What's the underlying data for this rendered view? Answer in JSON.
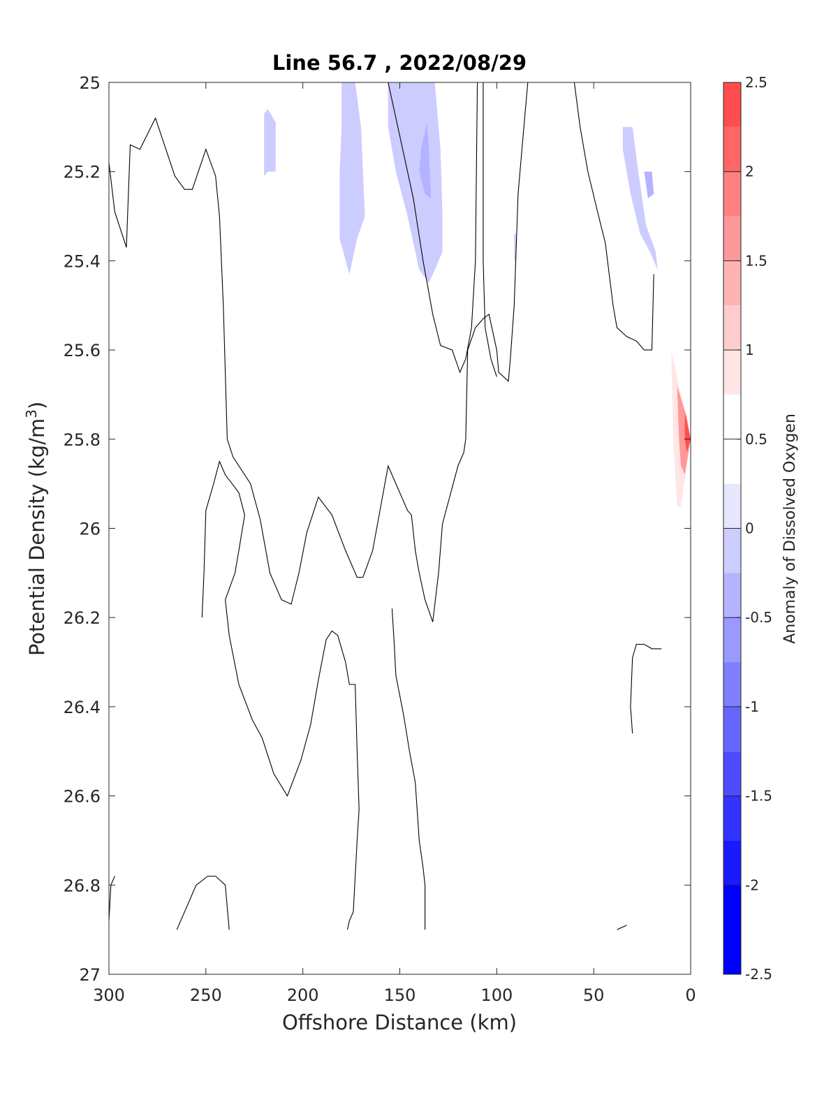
{
  "chart_data": {
    "type": "heatmap",
    "subtype": "filled-contour",
    "title": "Line 56.7 , 2022/08/29",
    "xlabel": "Offshore Distance (km)",
    "ylabel_main": "Potential Density (kg/m",
    "ylabel_sup": "3",
    "ylabel_close": ")",
    "xlim": [
      300,
      0
    ],
    "x_reversed": true,
    "ylim": [
      25,
      27
    ],
    "y_reversed": true,
    "x_ticks": [
      300,
      250,
      200,
      150,
      100,
      50,
      0
    ],
    "y_ticks": [
      "25",
      "25.2",
      "25.4",
      "25.6",
      "25.8",
      "26",
      "26.2",
      "26.4",
      "26.6",
      "26.8",
      "27"
    ],
    "colorbar": {
      "label": "Anomaly of Dissolved Oxygen",
      "range": [
        -2.5,
        2.5
      ],
      "step": 0.25,
      "ticks": [
        "-2.5",
        "-2",
        "-1.5",
        "-1",
        "-0.5",
        "0",
        "0.5",
        "1",
        "1.5",
        "2",
        "2.5"
      ],
      "colors_low_to_high": [
        "#0000ff",
        "#1a1aff",
        "#3333ff",
        "#4d4dff",
        "#6666ff",
        "#8080ff",
        "#9999ff",
        "#b3b3ff",
        "#ccccff",
        "#e6e6ff",
        "#ffffff",
        "#ffffff",
        "#ffe6e6",
        "#ffcccc",
        "#ffb3b3",
        "#ff9999",
        "#ff8080",
        "#ff6666",
        "#ff4d4d",
        "#ff3333",
        "#ff1a1a",
        "#ff0000"
      ]
    },
    "anomaly_regions": [
      {
        "level": 0.25,
        "points": [
          [
            300,
            25.55
          ],
          [
            298,
            25.65
          ],
          [
            298,
            25.72
          ],
          [
            300,
            25.76
          ]
        ]
      },
      {
        "level": 0.25,
        "points": [
          [
            300,
            25.9
          ],
          [
            292,
            25.98
          ],
          [
            286,
            26.2
          ],
          [
            284,
            26.4
          ],
          [
            283,
            26.6
          ],
          [
            290,
            26.63
          ],
          [
            300,
            26.66
          ]
        ]
      },
      {
        "level": 0.5,
        "points": [
          [
            300,
            26.04
          ],
          [
            294,
            26.15
          ],
          [
            292,
            26.3
          ],
          [
            291,
            26.4
          ],
          [
            295,
            26.44
          ],
          [
            300,
            26.47
          ]
        ]
      },
      {
        "level": 0.25,
        "points": [
          [
            275,
            25.3
          ],
          [
            270,
            25.29
          ],
          [
            260,
            25.4
          ],
          [
            255,
            25.46
          ],
          [
            250,
            25.45
          ],
          [
            247,
            25.6
          ],
          [
            246,
            25.8
          ],
          [
            248,
            26.0
          ],
          [
            250,
            26.2
          ],
          [
            252,
            26.32
          ],
          [
            257,
            26.37
          ],
          [
            265,
            26.38
          ],
          [
            270,
            26.36
          ],
          [
            275,
            26.1
          ],
          [
            278,
            26.0
          ],
          [
            281,
            25.9
          ],
          [
            282,
            25.8
          ],
          [
            280,
            25.6
          ],
          [
            278,
            25.4
          ]
        ]
      },
      {
        "level": 0.5,
        "points": [
          [
            271,
            25.49
          ],
          [
            266,
            25.52
          ],
          [
            262,
            25.6
          ],
          [
            256,
            25.7
          ],
          [
            255,
            25.8
          ],
          [
            255,
            25.9
          ],
          [
            260,
            26.1
          ],
          [
            263,
            26.3
          ],
          [
            267,
            26.3
          ],
          [
            270,
            26.1
          ],
          [
            272,
            25.9
          ],
          [
            272,
            25.7
          ]
        ]
      },
      {
        "level": 0.25,
        "points": [
          [
            75,
            25.37
          ],
          [
            78,
            25.38
          ],
          [
            81,
            25.5
          ],
          [
            81,
            25.8
          ],
          [
            83,
            25.92
          ],
          [
            88,
            25.9
          ],
          [
            91,
            25.87
          ],
          [
            96,
            25.93
          ],
          [
            101,
            25.94
          ],
          [
            102,
            26.2
          ],
          [
            102,
            26.5
          ],
          [
            102,
            26.6
          ],
          [
            98,
            26.68
          ],
          [
            92,
            26.77
          ],
          [
            87,
            26.82
          ],
          [
            82,
            26.82
          ],
          [
            78,
            26.78
          ],
          [
            77,
            26.7
          ],
          [
            74,
            26.6
          ],
          [
            69,
            26.54
          ],
          [
            60,
            26.53
          ],
          [
            54,
            26.49
          ],
          [
            49,
            26.4
          ],
          [
            52,
            26.2
          ],
          [
            54,
            26.1
          ],
          [
            60,
            26.0
          ],
          [
            66,
            25.96
          ],
          [
            70,
            25.8
          ],
          [
            72,
            25.6
          ]
        ]
      },
      {
        "level": 0.25,
        "points": [
          [
            11,
            25.47
          ],
          [
            8,
            25.5
          ],
          [
            6,
            25.6
          ],
          [
            1,
            25.75
          ],
          [
            0,
            25.8
          ],
          [
            3,
            25.98
          ],
          [
            5,
            26.1
          ],
          [
            7,
            26.15
          ],
          [
            10,
            26.21
          ],
          [
            14,
            26.21
          ],
          [
            18,
            26.06
          ],
          [
            20,
            25.9
          ],
          [
            23,
            25.8
          ],
          [
            19,
            25.76
          ],
          [
            15,
            25.78
          ],
          [
            12,
            25.7
          ]
        ]
      },
      {
        "level": 0.75,
        "points": [
          [
            10,
            25.6
          ],
          [
            5,
            25.7
          ],
          [
            0,
            25.8
          ],
          [
            5,
            25.95
          ],
          [
            7,
            25.95
          ],
          [
            9,
            25.8
          ]
        ]
      },
      {
        "level": 1.5,
        "points": [
          [
            7,
            25.68
          ],
          [
            2,
            25.75
          ],
          [
            0,
            25.8
          ],
          [
            3,
            25.88
          ],
          [
            5,
            25.86
          ],
          [
            6,
            25.8
          ]
        ]
      },
      {
        "level": 2.25,
        "points": [
          [
            3,
            25.74
          ],
          [
            0,
            25.8
          ],
          [
            2,
            25.83
          ],
          [
            3,
            25.8
          ]
        ]
      },
      {
        "level": -0.25,
        "points": [
          [
            220,
            25.07
          ],
          [
            218,
            25.06
          ],
          [
            214,
            25.09
          ],
          [
            214,
            25.2
          ],
          [
            218,
            25.2
          ],
          [
            220,
            25.21
          ]
        ]
      },
      {
        "level": -0.25,
        "points": [
          [
            180,
            25.0
          ],
          [
            173,
            25.0
          ],
          [
            170,
            25.1
          ],
          [
            168,
            25.3
          ],
          [
            172,
            25.35
          ],
          [
            176,
            25.43
          ],
          [
            181,
            25.35
          ],
          [
            181,
            25.2
          ],
          [
            180,
            25.1
          ]
        ]
      },
      {
        "level": -0.25,
        "points": [
          [
            156,
            25.0
          ],
          [
            132,
            25.0
          ],
          [
            129,
            25.15
          ],
          [
            128,
            25.3
          ],
          [
            128,
            25.38
          ],
          [
            135,
            25.45
          ],
          [
            140,
            25.42
          ],
          [
            146,
            25.3
          ],
          [
            152,
            25.2
          ],
          [
            156,
            25.1
          ]
        ]
      },
      {
        "level": -0.5,
        "points": [
          [
            136,
            25.09
          ],
          [
            139,
            25.15
          ],
          [
            140,
            25.2
          ],
          [
            137,
            25.25
          ],
          [
            134,
            25.26
          ],
          [
            135,
            25.15
          ]
        ]
      },
      {
        "level": -0.25,
        "points": [
          [
            35,
            25.1
          ],
          [
            30,
            25.1
          ],
          [
            27,
            25.2
          ],
          [
            23,
            25.32
          ],
          [
            18,
            25.38
          ],
          [
            17,
            25.42
          ],
          [
            21,
            25.38
          ],
          [
            26,
            25.34
          ],
          [
            31,
            25.25
          ],
          [
            35,
            25.15
          ]
        ]
      },
      {
        "level": -0.5,
        "points": [
          [
            24,
            25.2
          ],
          [
            20,
            25.2
          ],
          [
            19,
            25.25
          ],
          [
            22,
            25.26
          ]
        ]
      },
      {
        "level": -0.25,
        "points": [
          [
            91,
            25.34
          ],
          [
            90,
            25.34
          ],
          [
            90,
            25.4
          ],
          [
            91,
            25.4
          ]
        ]
      }
    ],
    "zero_contours": [
      [
        [
          300,
          25.18
        ],
        [
          297,
          25.29
        ],
        [
          291,
          25.37
        ],
        [
          289,
          25.14
        ],
        [
          284,
          25.15
        ],
        [
          276,
          25.08
        ],
        [
          266,
          25.21
        ],
        [
          261,
          25.24
        ],
        [
          257,
          25.24
        ],
        [
          250,
          25.15
        ],
        [
          245,
          25.21
        ],
        [
          243,
          25.3
        ],
        [
          241,
          25.5
        ],
        [
          239,
          25.8
        ],
        [
          236,
          25.84
        ],
        [
          227,
          25.9
        ],
        [
          222,
          25.98
        ],
        [
          217,
          26.1
        ],
        [
          211,
          26.16
        ],
        [
          206,
          26.17
        ],
        [
          202,
          26.1
        ],
        [
          198,
          26.01
        ],
        [
          192,
          25.93
        ],
        [
          185,
          25.97
        ],
        [
          178,
          26.05
        ],
        [
          172,
          26.11
        ],
        [
          169,
          26.11
        ]
      ],
      [
        [
          169,
          26.11
        ],
        [
          164,
          26.05
        ],
        [
          156,
          25.86
        ],
        [
          151,
          25.91
        ],
        [
          146,
          25.96
        ],
        [
          144,
          25.97
        ],
        [
          142,
          26.05
        ],
        [
          140,
          26.1
        ],
        [
          137,
          26.16
        ],
        [
          133,
          26.21
        ]
      ],
      [
        [
          133,
          26.21
        ],
        [
          130,
          26.1
        ],
        [
          128,
          25.99
        ],
        [
          120,
          25.86
        ],
        [
          117,
          25.83
        ],
        [
          116,
          25.8
        ],
        [
          115,
          25.6
        ]
      ],
      [
        [
          115,
          25.6
        ],
        [
          111,
          25.55
        ],
        [
          107,
          25.53
        ],
        [
          104,
          25.52
        ],
        [
          100,
          25.6
        ],
        [
          99,
          25.65
        ],
        [
          94,
          25.67
        ],
        [
          93,
          25.62
        ],
        [
          91,
          25.5
        ],
        [
          89,
          25.25
        ],
        [
          87,
          25.15
        ],
        [
          84,
          25.0
        ]
      ],
      [
        [
          110,
          25.0
        ],
        [
          111,
          25.4
        ],
        [
          113,
          25.55
        ],
        [
          116,
          25.62
        ],
        [
          119,
          25.65
        ],
        [
          123,
          25.6
        ],
        [
          129,
          25.59
        ],
        [
          133,
          25.52
        ],
        [
          138,
          25.4
        ],
        [
          143,
          25.26
        ],
        [
          151,
          25.1
        ],
        [
          156,
          25.0
        ]
      ],
      [
        [
          107,
          25.0
        ],
        [
          107,
          25.4
        ],
        [
          106,
          25.55
        ],
        [
          103,
          25.62
        ],
        [
          100,
          25.66
        ]
      ],
      [
        [
          60,
          25.0
        ],
        [
          57,
          25.1
        ],
        [
          53,
          25.2
        ],
        [
          48,
          25.29
        ],
        [
          44,
          25.36
        ],
        [
          40,
          25.5
        ],
        [
          38,
          25.55
        ],
        [
          33,
          25.57
        ],
        [
          28,
          25.58
        ],
        [
          24,
          25.6
        ],
        [
          20,
          25.6
        ]
      ],
      [
        [
          20,
          25.6
        ],
        [
          19,
          25.43
        ]
      ],
      [
        [
          177,
          26.9
        ],
        [
          176,
          26.88
        ],
        [
          174,
          26.86
        ],
        [
          172,
          26.7
        ],
        [
          171,
          26.63
        ],
        [
          172,
          26.5
        ],
        [
          173,
          26.35
        ],
        [
          176,
          26.35
        ],
        [
          178,
          26.3
        ],
        [
          182,
          26.24
        ],
        [
          185,
          26.23
        ],
        [
          188,
          26.25
        ],
        [
          192,
          26.34
        ],
        [
          196,
          26.44
        ],
        [
          201,
          26.52
        ],
        [
          208,
          26.6
        ],
        [
          215,
          26.55
        ],
        [
          221,
          26.47
        ],
        [
          226,
          26.43
        ],
        [
          233,
          26.35
        ],
        [
          238,
          26.24
        ],
        [
          240,
          26.16
        ],
        [
          235,
          26.1
        ],
        [
          233,
          26.05
        ],
        [
          230,
          25.97
        ],
        [
          233,
          25.92
        ],
        [
          240,
          25.88
        ],
        [
          243,
          25.85
        ],
        [
          246,
          25.9
        ],
        [
          250,
          25.96
        ],
        [
          251,
          26.1
        ],
        [
          252,
          26.2
        ]
      ],
      [
        [
          137,
          26.9
        ],
        [
          137,
          26.8
        ],
        [
          138,
          26.76
        ],
        [
          140,
          26.7
        ],
        [
          142,
          26.57
        ],
        [
          145,
          26.5
        ],
        [
          148,
          26.42
        ],
        [
          152,
          26.33
        ],
        [
          153,
          26.25
        ],
        [
          154,
          26.18
        ]
      ],
      [
        [
          30,
          26.46
        ],
        [
          31,
          26.4
        ],
        [
          30,
          26.29
        ],
        [
          28,
          26.26
        ],
        [
          24,
          26.26
        ],
        [
          20,
          26.27
        ],
        [
          15,
          26.27
        ]
      ],
      [
        [
          300,
          26.88
        ],
        [
          299,
          26.8
        ],
        [
          297,
          26.78
        ]
      ],
      [
        [
          265,
          26.9
        ],
        [
          260,
          26.85
        ],
        [
          255,
          26.8
        ],
        [
          252,
          26.79
        ],
        [
          249,
          26.78
        ],
        [
          245,
          26.78
        ],
        [
          240,
          26.8
        ],
        [
          238,
          26.9
        ]
      ],
      [
        [
          38,
          26.9
        ],
        [
          33,
          26.89
        ]
      ]
    ]
  }
}
